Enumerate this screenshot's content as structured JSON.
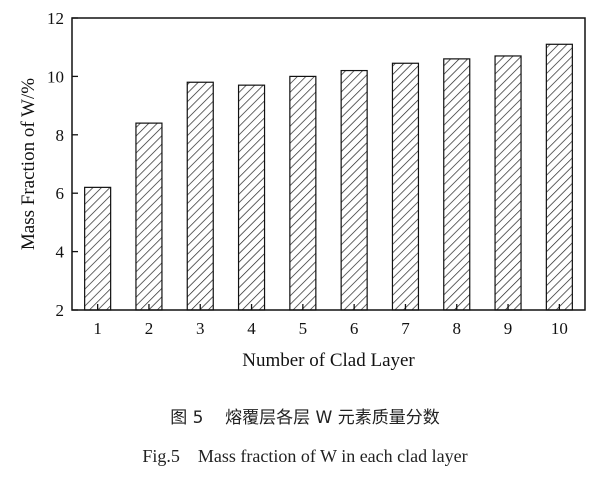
{
  "chart_data": {
    "type": "bar",
    "categories": [
      "1",
      "2",
      "3",
      "4",
      "5",
      "6",
      "7",
      "8",
      "9",
      "10"
    ],
    "values": [
      6.2,
      8.4,
      9.8,
      9.7,
      10.0,
      10.2,
      10.45,
      10.6,
      10.7,
      11.1
    ],
    "xlabel": "Number of Clad Layer",
    "ylabel": "Mass Fraction of W/%",
    "ylim": [
      2,
      12
    ],
    "yticks": [
      "2",
      "4",
      "6",
      "8",
      "10",
      "12"
    ],
    "bar_pattern": "diagonal-hatch",
    "grid": false,
    "legend": "none"
  },
  "captions": {
    "chinese": "图 5    熔覆层各层 W 元素质量分数",
    "english": "Fig.5    Mass fraction of W in each clad layer"
  }
}
